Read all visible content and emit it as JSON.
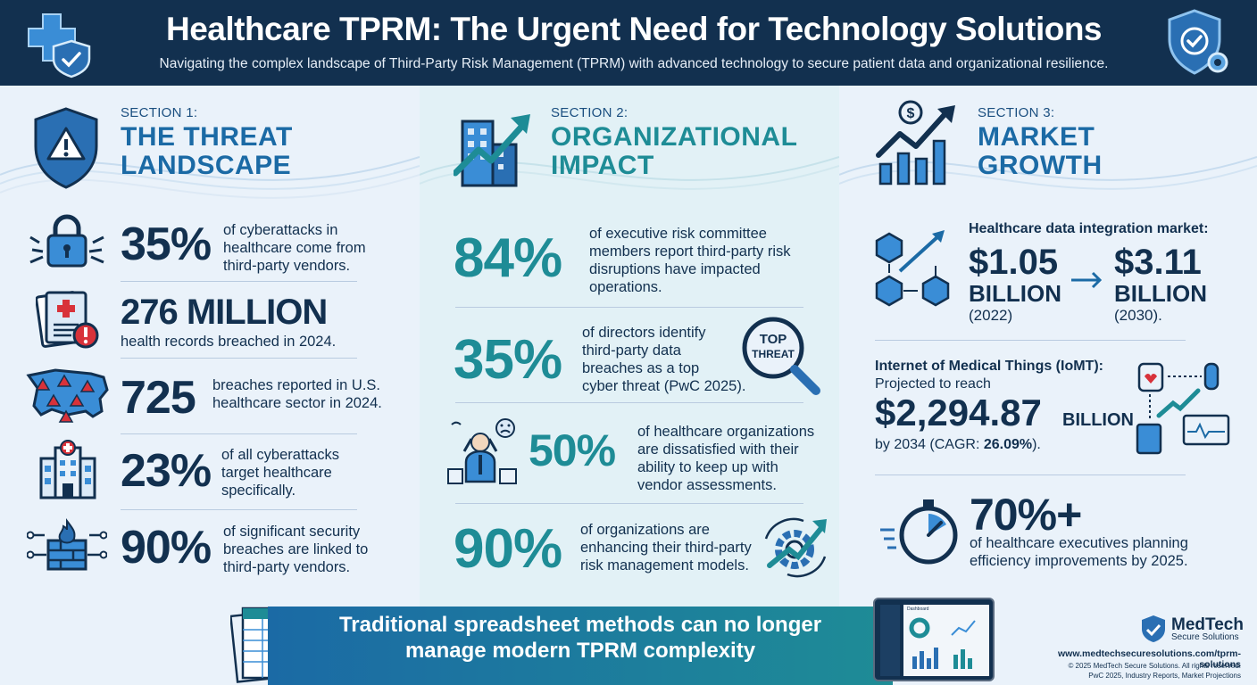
{
  "header": {
    "title": "Healthcare TPRM: The Urgent Need for Technology Solutions",
    "subtitle": "Navigating the complex landscape of Third-Party Risk Management (TPRM) with advanced technology to secure patient data and organizational resilience."
  },
  "section1": {
    "label": "SECTION 1:",
    "title_line1": "THE THREAT",
    "title_line2": "LANDSCAPE",
    "stats": [
      {
        "value": "35%",
        "text_l1": "of cyberattacks in",
        "text_l2": "healthcare come from",
        "text_l3": "third-party vendors."
      },
      {
        "value": "276 MILLION",
        "text_l1": "health records breached in 2024."
      },
      {
        "value": "725",
        "text_l1": "breaches reported in U.S.",
        "text_l2": "healthcare sector in 2024."
      },
      {
        "value": "23%",
        "text_l1": "of all cyberattacks",
        "text_l2": "target healthcare",
        "text_l3": "specifically."
      },
      {
        "value": "90%",
        "text_l1": "of significant security",
        "text_l2": "breaches are linked to",
        "text_l3": "third-party vendors."
      }
    ]
  },
  "section2": {
    "label": "SECTION 2:",
    "title_line1": "ORGANIZATIONAL",
    "title_line2": "IMPACT",
    "badge_l1": "TOP",
    "badge_l2": "THREAT",
    "stats": [
      {
        "value": "84%",
        "text_l1": "of executive risk committee",
        "text_l2": "members report third-party risk",
        "text_l3": "disruptions have impacted",
        "text_l4": "operations."
      },
      {
        "value": "35%",
        "text_l1": "of directors identify",
        "text_l2": "third-party data",
        "text_l3": "breaches as a top",
        "text_l4": "cyber threat (PwC 2025)."
      },
      {
        "value": "50%",
        "text_l1": "of healthcare organizations",
        "text_l2": "are dissatisfied with their",
        "text_l3": "ability to keep up with",
        "text_l4": "vendor assessments."
      },
      {
        "value": "90%",
        "text_l1": "of organizations are",
        "text_l2": "enhancing their third-party",
        "text_l3": "risk management models."
      }
    ]
  },
  "section3": {
    "label": "SECTION 3:",
    "title_line1": "MARKET",
    "title_line2": "GROWTH",
    "integration": {
      "heading": "Healthcare data integration market:",
      "from_value": "$1.05",
      "from_unit": "BILLION",
      "from_year": "(2022)",
      "to_value": "$3.11",
      "to_unit": "BILLION",
      "to_year": "(2030)."
    },
    "iomt": {
      "heading": "Internet of Medical Things (IoMT):",
      "line2": "Projected to reach",
      "value": "$2,294.87",
      "unit": "BILLION",
      "footer_prefix": "by 2034 (CAGR: ",
      "footer_cagr": "26.09%",
      "footer_suffix": ")."
    },
    "efficiency": {
      "value": "70%+",
      "text_l1": "of healthcare executives planning",
      "text_l2": "efficiency improvements by 2025."
    }
  },
  "footer": {
    "banner_l1": "Traditional spreadsheet methods can no longer",
    "banner_l2": "manage modern TPRM complexity",
    "dashboard_label": "Dashboard",
    "brand_name": "MedTech",
    "brand_sub": "Secure Solutions",
    "url": "www.medtechsecuresolutions.com/tprm-solutions",
    "copyright": "© 2025 MedTech Secure Solutions. All rights reserved.",
    "sources": "PwC 2025, Industry Reports, Market Projections"
  },
  "colors": {
    "navy": "#12304f",
    "blue": "#1b6aa5",
    "teal": "#1e8c96",
    "alert_red": "#d8323a"
  }
}
